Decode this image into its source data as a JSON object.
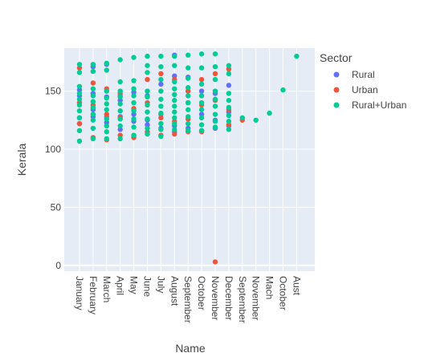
{
  "chart_data": {
    "type": "scatter",
    "xlabel": "Name",
    "ylabel": "Kerala",
    "ylim": [
      -5,
      187
    ],
    "yticks": [
      0,
      50,
      100,
      150
    ],
    "categories": [
      "January",
      "February",
      "March",
      "April",
      "May",
      "June",
      "July",
      "August",
      "September",
      "October",
      "November",
      "December",
      "September",
      "November",
      "Mach",
      "October",
      "Aust"
    ],
    "grid": true,
    "legend": {
      "title": "Sector",
      "placement": "top-right"
    },
    "series": [
      {
        "name": "Rural",
        "color": "#636efa",
        "points": [
          {
            "x": 0,
            "y": 151
          },
          {
            "x": 0,
            "y": 146
          },
          {
            "x": 0,
            "y": 127
          },
          {
            "x": 0,
            "y": 122
          },
          {
            "x": 1,
            "y": 171
          },
          {
            "x": 1,
            "y": 148
          },
          {
            "x": 1,
            "y": 134
          },
          {
            "x": 1,
            "y": 128
          },
          {
            "x": 2,
            "y": 173
          },
          {
            "x": 2,
            "y": 145
          },
          {
            "x": 2,
            "y": 128
          },
          {
            "x": 2,
            "y": 123
          },
          {
            "x": 3,
            "y": 146
          },
          {
            "x": 3,
            "y": 142
          },
          {
            "x": 3,
            "y": 128
          },
          {
            "x": 3,
            "y": 117
          },
          {
            "x": 4,
            "y": 149
          },
          {
            "x": 4,
            "y": 130
          },
          {
            "x": 4,
            "y": 124
          },
          {
            "x": 5,
            "y": 146
          },
          {
            "x": 5,
            "y": 125
          },
          {
            "x": 5,
            "y": 121
          },
          {
            "x": 6,
            "y": 156
          },
          {
            "x": 6,
            "y": 130
          },
          {
            "x": 6,
            "y": 118
          },
          {
            "x": 7,
            "y": 181
          },
          {
            "x": 7,
            "y": 163
          },
          {
            "x": 7,
            "y": 120
          },
          {
            "x": 7,
            "y": 115
          },
          {
            "x": 8,
            "y": 162
          },
          {
            "x": 8,
            "y": 140
          },
          {
            "x": 8,
            "y": 118
          },
          {
            "x": 9,
            "y": 150
          },
          {
            "x": 9,
            "y": 130
          },
          {
            "x": 9,
            "y": 116
          },
          {
            "x": 10,
            "y": 148
          },
          {
            "x": 10,
            "y": 125
          },
          {
            "x": 10,
            "y": 118
          },
          {
            "x": 11,
            "y": 155
          },
          {
            "x": 11,
            "y": 132
          },
          {
            "x": 11,
            "y": 120
          }
        ]
      },
      {
        "name": "Urban",
        "color": "#ef553b",
        "points": [
          {
            "x": 0,
            "y": 170
          },
          {
            "x": 0,
            "y": 140
          },
          {
            "x": 0,
            "y": 122
          },
          {
            "x": 1,
            "y": 157
          },
          {
            "x": 1,
            "y": 138
          },
          {
            "x": 1,
            "y": 110
          },
          {
            "x": 2,
            "y": 152
          },
          {
            "x": 2,
            "y": 130
          },
          {
            "x": 2,
            "y": 108
          },
          {
            "x": 3,
            "y": 148
          },
          {
            "x": 3,
            "y": 127
          },
          {
            "x": 3,
            "y": 112
          },
          {
            "x": 4,
            "y": 135
          },
          {
            "x": 4,
            "y": 110
          },
          {
            "x": 5,
            "y": 160
          },
          {
            "x": 5,
            "y": 140
          },
          {
            "x": 5,
            "y": 115
          },
          {
            "x": 6,
            "y": 165
          },
          {
            "x": 6,
            "y": 127
          },
          {
            "x": 6,
            "y": 112
          },
          {
            "x": 7,
            "y": 160
          },
          {
            "x": 7,
            "y": 124
          },
          {
            "x": 7,
            "y": 113
          },
          {
            "x": 8,
            "y": 150
          },
          {
            "x": 8,
            "y": 126
          },
          {
            "x": 8,
            "y": 115
          },
          {
            "x": 9,
            "y": 160
          },
          {
            "x": 9,
            "y": 138
          },
          {
            "x": 9,
            "y": 115
          },
          {
            "x": 10,
            "y": 165
          },
          {
            "x": 10,
            "y": 142
          },
          {
            "x": 10,
            "y": 3
          },
          {
            "x": 11,
            "y": 169
          },
          {
            "x": 11,
            "y": 134
          },
          {
            "x": 11,
            "y": 121
          },
          {
            "x": 12,
            "y": 125
          }
        ]
      },
      {
        "name": "Rural+Urban",
        "color": "#00cc96",
        "points": [
          {
            "x": 0,
            "y": 173
          },
          {
            "x": 0,
            "y": 166
          },
          {
            "x": 0,
            "y": 154
          },
          {
            "x": 0,
            "y": 148
          },
          {
            "x": 0,
            "y": 143
          },
          {
            "x": 0,
            "y": 138
          },
          {
            "x": 0,
            "y": 133
          },
          {
            "x": 0,
            "y": 127
          },
          {
            "x": 0,
            "y": 116
          },
          {
            "x": 0,
            "y": 107
          },
          {
            "x": 1,
            "y": 173
          },
          {
            "x": 1,
            "y": 167
          },
          {
            "x": 1,
            "y": 152
          },
          {
            "x": 1,
            "y": 146
          },
          {
            "x": 1,
            "y": 141
          },
          {
            "x": 1,
            "y": 136
          },
          {
            "x": 1,
            "y": 130
          },
          {
            "x": 1,
            "y": 125
          },
          {
            "x": 1,
            "y": 118
          },
          {
            "x": 1,
            "y": 109
          },
          {
            "x": 2,
            "y": 174
          },
          {
            "x": 2,
            "y": 168
          },
          {
            "x": 2,
            "y": 150
          },
          {
            "x": 2,
            "y": 144
          },
          {
            "x": 2,
            "y": 139
          },
          {
            "x": 2,
            "y": 134
          },
          {
            "x": 2,
            "y": 126
          },
          {
            "x": 2,
            "y": 120
          },
          {
            "x": 2,
            "y": 115
          },
          {
            "x": 2,
            "y": 109
          },
          {
            "x": 3,
            "y": 177
          },
          {
            "x": 3,
            "y": 158
          },
          {
            "x": 3,
            "y": 150
          },
          {
            "x": 3,
            "y": 145
          },
          {
            "x": 3,
            "y": 139
          },
          {
            "x": 3,
            "y": 133
          },
          {
            "x": 3,
            "y": 126
          },
          {
            "x": 3,
            "y": 120
          },
          {
            "x": 3,
            "y": 109
          },
          {
            "x": 4,
            "y": 179
          },
          {
            "x": 4,
            "y": 159
          },
          {
            "x": 4,
            "y": 152
          },
          {
            "x": 4,
            "y": 146
          },
          {
            "x": 4,
            "y": 140
          },
          {
            "x": 4,
            "y": 133
          },
          {
            "x": 4,
            "y": 126
          },
          {
            "x": 4,
            "y": 119
          },
          {
            "x": 4,
            "y": 112
          },
          {
            "x": 5,
            "y": 180
          },
          {
            "x": 5,
            "y": 172
          },
          {
            "x": 5,
            "y": 166
          },
          {
            "x": 5,
            "y": 150
          },
          {
            "x": 5,
            "y": 145
          },
          {
            "x": 5,
            "y": 138
          },
          {
            "x": 5,
            "y": 132
          },
          {
            "x": 5,
            "y": 126
          },
          {
            "x": 5,
            "y": 118
          },
          {
            "x": 5,
            "y": 113
          },
          {
            "x": 6,
            "y": 180
          },
          {
            "x": 6,
            "y": 171
          },
          {
            "x": 6,
            "y": 160
          },
          {
            "x": 6,
            "y": 150
          },
          {
            "x": 6,
            "y": 143
          },
          {
            "x": 6,
            "y": 137
          },
          {
            "x": 6,
            "y": 131
          },
          {
            "x": 6,
            "y": 122
          },
          {
            "x": 6,
            "y": 117
          },
          {
            "x": 6,
            "y": 111
          },
          {
            "x": 7,
            "y": 180
          },
          {
            "x": 7,
            "y": 172
          },
          {
            "x": 7,
            "y": 158
          },
          {
            "x": 7,
            "y": 152
          },
          {
            "x": 7,
            "y": 147
          },
          {
            "x": 7,
            "y": 142
          },
          {
            "x": 7,
            "y": 137
          },
          {
            "x": 7,
            "y": 132
          },
          {
            "x": 7,
            "y": 127
          },
          {
            "x": 7,
            "y": 122
          },
          {
            "x": 7,
            "y": 117
          },
          {
            "x": 8,
            "y": 181
          },
          {
            "x": 8,
            "y": 170
          },
          {
            "x": 8,
            "y": 161
          },
          {
            "x": 8,
            "y": 153
          },
          {
            "x": 8,
            "y": 146
          },
          {
            "x": 8,
            "y": 140
          },
          {
            "x": 8,
            "y": 134
          },
          {
            "x": 8,
            "y": 128
          },
          {
            "x": 8,
            "y": 122
          },
          {
            "x": 8,
            "y": 116
          },
          {
            "x": 9,
            "y": 182
          },
          {
            "x": 9,
            "y": 170
          },
          {
            "x": 9,
            "y": 156
          },
          {
            "x": 9,
            "y": 146
          },
          {
            "x": 9,
            "y": 140
          },
          {
            "x": 9,
            "y": 134
          },
          {
            "x": 9,
            "y": 127
          },
          {
            "x": 9,
            "y": 121
          },
          {
            "x": 9,
            "y": 116
          },
          {
            "x": 10,
            "y": 182
          },
          {
            "x": 10,
            "y": 171
          },
          {
            "x": 10,
            "y": 160
          },
          {
            "x": 10,
            "y": 150
          },
          {
            "x": 10,
            "y": 143
          },
          {
            "x": 10,
            "y": 137
          },
          {
            "x": 10,
            "y": 130
          },
          {
            "x": 10,
            "y": 124
          },
          {
            "x": 10,
            "y": 119
          },
          {
            "x": 11,
            "y": 172
          },
          {
            "x": 11,
            "y": 165
          },
          {
            "x": 11,
            "y": 148
          },
          {
            "x": 11,
            "y": 142
          },
          {
            "x": 11,
            "y": 136
          },
          {
            "x": 11,
            "y": 129
          },
          {
            "x": 11,
            "y": 124
          },
          {
            "x": 11,
            "y": 117
          },
          {
            "x": 12,
            "y": 127
          },
          {
            "x": 13,
            "y": 125
          },
          {
            "x": 14,
            "y": 131
          },
          {
            "x": 15,
            "y": 151
          },
          {
            "x": 16,
            "y": 180
          }
        ]
      }
    ]
  }
}
